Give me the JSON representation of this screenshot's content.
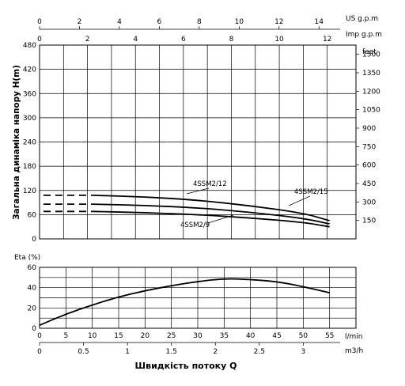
{
  "chart_data": [
    {
      "type": "line",
      "name_hint": "head-chart",
      "ylabel": "Загальна динаміка напору H(m)",
      "ylim": [
        0,
        480
      ],
      "yticks": [
        "0",
        "60",
        "120",
        "180",
        "240",
        "300",
        "360",
        "420",
        "480"
      ],
      "right_unit": "feet",
      "right_ticks": [
        {
          "label": "150",
          "value": 150
        },
        {
          "label": "300",
          "value": 300
        },
        {
          "label": "450",
          "value": 450
        },
        {
          "label": "600",
          "value": 600
        },
        {
          "label": "750",
          "value": 750
        },
        {
          "label": "900",
          "value": 900
        },
        {
          "label": "1050",
          "value": 1050
        },
        {
          "label": "1200",
          "value": 1200
        },
        {
          "label": "1350",
          "value": 1350
        },
        {
          "label": "1500",
          "value": 1500
        }
      ],
      "top_axes": [
        {
          "unit": "US g.p.m",
          "ticks": [
            "0",
            "2",
            "4",
            "6",
            "8",
            "10",
            "12",
            "14"
          ]
        },
        {
          "unit": "Imp g.p.m",
          "ticks": [
            "0",
            "2",
            "4",
            "6",
            "8",
            "10",
            "12"
          ]
        }
      ],
      "xlim_l_min": [
        0,
        55
      ],
      "grid": true,
      "series": [
        {
          "name": "4SSM2/15",
          "dashed_to": 10,
          "x": [
            10,
            20,
            30,
            40,
            50,
            55
          ],
          "y": [
            108,
            104,
            96,
            82,
            64,
            45
          ]
        },
        {
          "name": "4SSM2/12",
          "dashed_to": 10,
          "x": [
            10,
            20,
            30,
            40,
            50,
            55
          ],
          "y": [
            86,
            83,
            77,
            66,
            51,
            37
          ]
        },
        {
          "name": "4SSM2/9",
          "dashed_to": 10,
          "x": [
            10,
            20,
            30,
            40,
            50,
            55
          ],
          "y": [
            68,
            65,
            60,
            52,
            41,
            30
          ]
        }
      ]
    },
    {
      "type": "line",
      "name_hint": "efficiency-chart",
      "ylabel": "Eta (%)",
      "ylim": [
        0,
        60
      ],
      "yticks": [
        "0",
        "20",
        "40",
        "60"
      ],
      "xlabel": "Швидкість потоку Q",
      "x_axes": [
        {
          "unit": "l/min",
          "ticks": [
            "0",
            "5",
            "10",
            "15",
            "20",
            "25",
            "30",
            "35",
            "40",
            "45",
            "50",
            "55"
          ]
        },
        {
          "unit": "m3/h",
          "ticks": [
            "0",
            "0.5",
            "1",
            "1.5",
            "2",
            "2.5",
            "3"
          ]
        }
      ],
      "grid": true,
      "series": [
        {
          "x": [
            0,
            5,
            10,
            15,
            20,
            25,
            30,
            35,
            40,
            45,
            50,
            55
          ],
          "y": [
            3,
            14,
            23,
            31,
            37,
            42,
            46,
            49,
            48,
            46,
            41,
            35
          ]
        }
      ]
    }
  ]
}
